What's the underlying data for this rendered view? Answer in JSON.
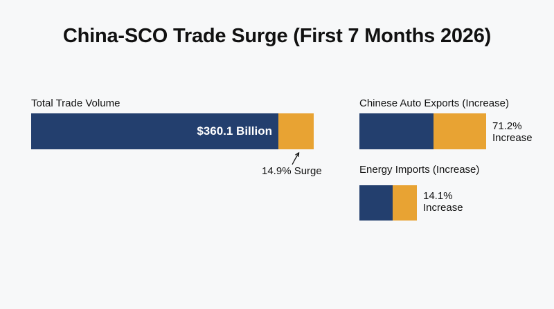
{
  "chart_data": [
    {
      "type": "bar",
      "title": "China-SCO Trade Surge (First 7 Months 2026)",
      "panel_label": "Total Trade Volume",
      "value_label": "$360.1 Billion",
      "value": 360.1,
      "unit": "Billion",
      "increase_pct": 14.9,
      "annotation": "14.9% Surge"
    },
    {
      "type": "bar",
      "panel_label": "Chinese Auto Exports (Increase)",
      "increase_pct": 71.2,
      "annotation_line1": "71.2%",
      "annotation_line2": "Increase"
    },
    {
      "type": "bar",
      "panel_label": "Energy Imports (Increase)",
      "increase_pct": 14.1,
      "annotation_line1": "14.1%",
      "annotation_line2": "Increase"
    }
  ],
  "colors": {
    "base": "#233f6e",
    "increase": "#e8a333",
    "background": "#f7f8f9"
  }
}
